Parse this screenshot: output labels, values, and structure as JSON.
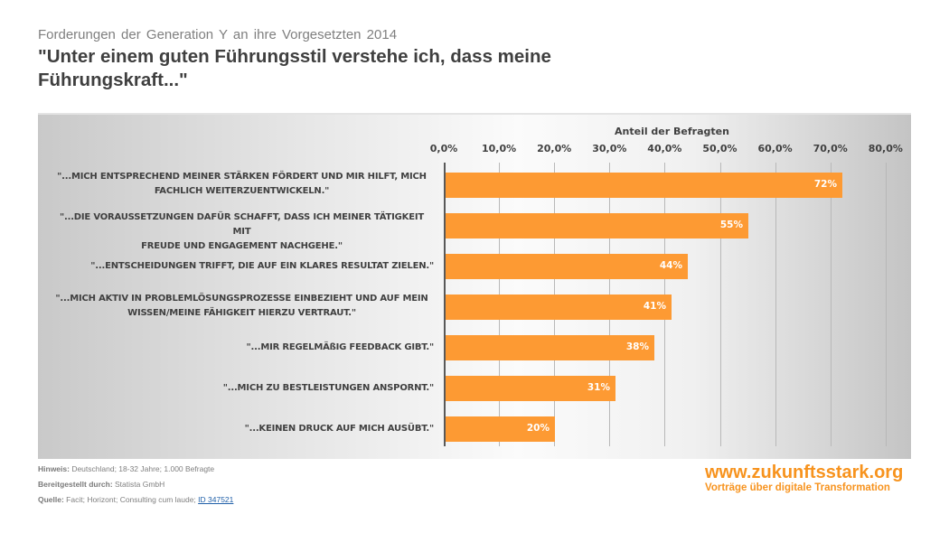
{
  "header": {
    "subtitle": "Forderungen der Generation Y an ihre Vorgesetzten 2014",
    "title": "\"Unter einem guten Führungsstil verstehe ich, dass meine Führungskraft...\""
  },
  "chart_data": {
    "type": "bar",
    "orientation": "horizontal",
    "title": "\"Unter einem guten Führungsstil verstehe ich, dass meine Führungskraft...\"",
    "subtitle": "Forderungen der Generation Y an ihre Vorgesetzten 2014",
    "xlabel": "Anteil der Befragten",
    "ylabel": "",
    "xlim": [
      0,
      80
    ],
    "x_ticks": [
      "0,0%",
      "10,0%",
      "20,0%",
      "30,0%",
      "40,0%",
      "50,0%",
      "60,0%",
      "70,0%",
      "80,0%"
    ],
    "x_axis_position": "top",
    "grid": true,
    "bar_color": "#fd9a33",
    "categories": [
      "\"...MICH ENTSPRECHEND MEINER STÄRKEN FÖRDERT UND MIR HILFT, MICH FACHLICH WEITERZUENTWICKELN.\"",
      "\"...DIE VORAUSSETZUNGEN DAFÜR SCHAFFT, DASS ICH MEINER TÄTIGKEIT MIT FREUDE UND ENGAGEMENT NACHGEHE.\"",
      "\"...ENTSCHEIDUNGEN TRIFFT, DIE AUF EIN KLARES RESULTAT ZIELEN.\"",
      "\"...MICH AKTIV IN PROBLEMLÖSUNGSPROZESSE EINBEZIEHT UND AUF MEIN WISSEN/MEINE FÄHIGKEIT HIERZU VERTRAUT.\"",
      "\"...MIR REGELMÄßIG FEEDBACK GIBT.\"",
      "\"...MICH ZU BESTLEISTUNGEN ANSPORNT.\"",
      "\"...KEINEN DRUCK AUF MICH AUSÜBT.\""
    ],
    "values": [
      72,
      55,
      44,
      41,
      38,
      31,
      20
    ],
    "value_labels": [
      "72%",
      "55%",
      "44%",
      "41%",
      "38%",
      "31%",
      "20%"
    ]
  },
  "bars": [
    {
      "line1": "\"...MICH ENTSPRECHEND MEINER STÄRKEN FÖRDERT UND MIR HILFT, MICH",
      "line2": "FACHLICH WEITERZUENTWICKELN.\"",
      "value": 72,
      "label": "72%"
    },
    {
      "line1": "\"...DIE VORAUSSETZUNGEN DAFÜR SCHAFFT, DASS ICH MEINER TÄTIGKEIT MIT",
      "line2": "FREUDE UND ENGAGEMENT NACHGEHE.\"",
      "value": 55,
      "label": "55%"
    },
    {
      "line1": "\"...ENTSCHEIDUNGEN TRIFFT, DIE AUF EIN KLARES RESULTAT ZIELEN.\"",
      "line2": "",
      "value": 44,
      "label": "44%"
    },
    {
      "line1": "\"...MICH AKTIV IN PROBLEMLÖSUNGSPROZESSE EINBEZIEHT UND AUF MEIN",
      "line2": "WISSEN/MEINE FÄHIGKEIT HIERZU VERTRAUT.\"",
      "value": 41,
      "label": "41%"
    },
    {
      "line1": "\"...MIR REGELMÄßIG FEEDBACK GIBT.\"",
      "line2": "",
      "value": 38,
      "label": "38%"
    },
    {
      "line1": "\"...MICH ZU BESTLEISTUNGEN ANSPORNT.\"",
      "line2": "",
      "value": 31,
      "label": "31%"
    },
    {
      "line1": "\"...KEINEN DRUCK AUF MICH AUSÜBT.\"",
      "line2": "",
      "value": 20,
      "label": "20%"
    }
  ],
  "footer": {
    "hinweis_label": "Hinweis:",
    "hinweis_text": " Deutschland; 18-32 Jahre; 1.000 Befragte",
    "bereitgestellt_label": "Bereitgestellt durch:",
    "bereitgestellt_text": " Statista GmbH",
    "quelle_label": "Quelle:",
    "quelle_text": " Facit; Horizont; Consulting cum laude; ",
    "quelle_link": "ID 347521"
  },
  "brand": {
    "url": "www.zukunftsstark.org",
    "tagline": "Vorträge über digitale Transformation",
    "color": "#f7931e"
  }
}
